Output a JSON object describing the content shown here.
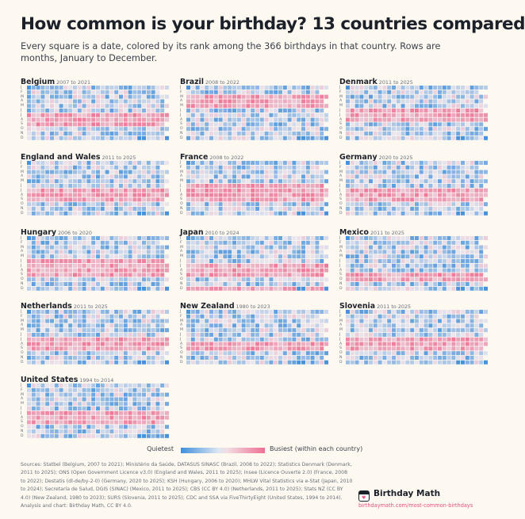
{
  "title": "How common is your birthday? 13 countries compared",
  "subtitle": "Every square is a date, colored by its rank among the 366 birthdays in that country. Rows are months, January to December.",
  "month_letters": [
    "J",
    "F",
    "M",
    "A",
    "M",
    "J",
    "J",
    "A",
    "S",
    "O",
    "N",
    "D"
  ],
  "legend": {
    "low": "Quietest",
    "high": "Busiest (within each country)"
  },
  "colors": {
    "quietest": "#3f8fdb",
    "middle": "#eae6ee",
    "busiest": "#ee6f93",
    "empty": "#fdf9f1"
  },
  "chart_data": [
    {
      "type": "heatmap",
      "title": "Belgium",
      "subtitle": "2007 to 2021",
      "busy_months": [
        6,
        7,
        8
      ]
    },
    {
      "type": "heatmap",
      "title": "Brazil",
      "subtitle": "2008 to 2022",
      "busy_months": [
        2,
        3,
        4
      ]
    },
    {
      "type": "heatmap",
      "title": "Denmark",
      "subtitle": "2011 to 2025",
      "busy_months": [
        5,
        6,
        7
      ]
    },
    {
      "type": "heatmap",
      "title": "England and Wales",
      "subtitle": "2011 to 2025",
      "busy_months": [
        6,
        7,
        8
      ]
    },
    {
      "type": "heatmap",
      "title": "France",
      "subtitle": "2008 to 2022",
      "busy_months": [
        5,
        6,
        7,
        8
      ]
    },
    {
      "type": "heatmap",
      "title": "Germany",
      "subtitle": "2020 to 2025",
      "busy_months": [
        6,
        7,
        8
      ]
    },
    {
      "type": "heatmap",
      "title": "Hungary",
      "subtitle": "2006 to 2020",
      "busy_months": [
        5,
        6,
        7,
        8
      ]
    },
    {
      "type": "heatmap",
      "title": "Japan",
      "subtitle": "2010 to 2024",
      "busy_months": [
        6,
        7,
        8,
        11
      ]
    },
    {
      "type": "heatmap",
      "title": "Mexico",
      "subtitle": "2011 to 2025",
      "busy_months": [
        8,
        9
      ]
    },
    {
      "type": "heatmap",
      "title": "Netherlands",
      "subtitle": "2011 to 2025",
      "busy_months": [
        6,
        7,
        8
      ]
    },
    {
      "type": "heatmap",
      "title": "New Zealand",
      "subtitle": "1980 to 2023",
      "busy_months": [
        7,
        8
      ]
    },
    {
      "type": "heatmap",
      "title": "Slovenia",
      "subtitle": "2011 to 2025",
      "busy_months": [
        6,
        7,
        8
      ]
    },
    {
      "type": "heatmap",
      "title": "United States",
      "subtitle": "1994 to 2014",
      "busy_months": [
        6,
        7,
        8
      ]
    }
  ],
  "sources": "Sources: Statbel (Belgium, 2007 to 2021); Ministério da Saúde, DATASUS SINASC (Brazil, 2008 to 2022); Statistics Denmark (Denmark, 2011 to 2025); ONS (Open Government Licence v3.0) (England and Wales, 2011 to 2025); Insee (Licence Ouverte 2.0) (France, 2008 to 2022); Destatis (dl-de/by-2-0) (Germany, 2020 to 2025); KSH (Hungary, 2006 to 2020); MHLW Vital Statistics via e-Stat (Japan, 2010 to 2024); Secretaría de Salud, DGIS (SINAC) (Mexico, 2011 to 2025); CBS (CC BY 4.0) (Netherlands, 2011 to 2025); Stats NZ (CC BY 4.0) (New Zealand, 1980 to 2023); SURS (Slovenia, 2011 to 2025); CDC and SSA via FiveThirtyEight (United States, 1994 to 2014). Analysis and chart: Birthday Math, CC BY 4.0.",
  "brand": {
    "name": "Birthday Math",
    "url": "birthdaymath.com/most-common-birthdays"
  }
}
